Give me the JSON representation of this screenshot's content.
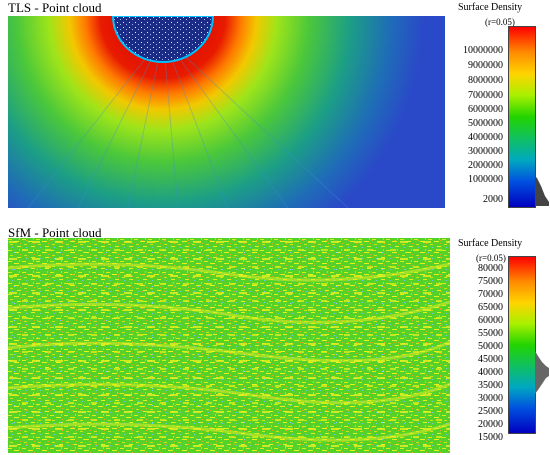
{
  "tls": {
    "title": "TLS - Point cloud",
    "legend": {
      "title": "Surface Density",
      "radius": "(r=0.05)",
      "ticks": [
        "10000000",
        "9000000",
        "8000000",
        "7000000",
        "6000000",
        "5000000",
        "4000000",
        "3000000",
        "2000000",
        "1000000",
        "2000"
      ]
    }
  },
  "sfm": {
    "title": "SfM - Point cloud",
    "legend": {
      "title": "Surface Density",
      "radius": "(r=0.05)",
      "ticks": [
        "80000",
        "75000",
        "70000",
        "65000",
        "60000",
        "55000",
        "50000",
        "45000",
        "40000",
        "35000",
        "30000",
        "25000",
        "20000",
        "15000"
      ]
    }
  },
  "colors": {
    "low": "#0000c0",
    "mid": "#22d400",
    "high": "#ff0000",
    "background": "#2a49c8"
  }
}
